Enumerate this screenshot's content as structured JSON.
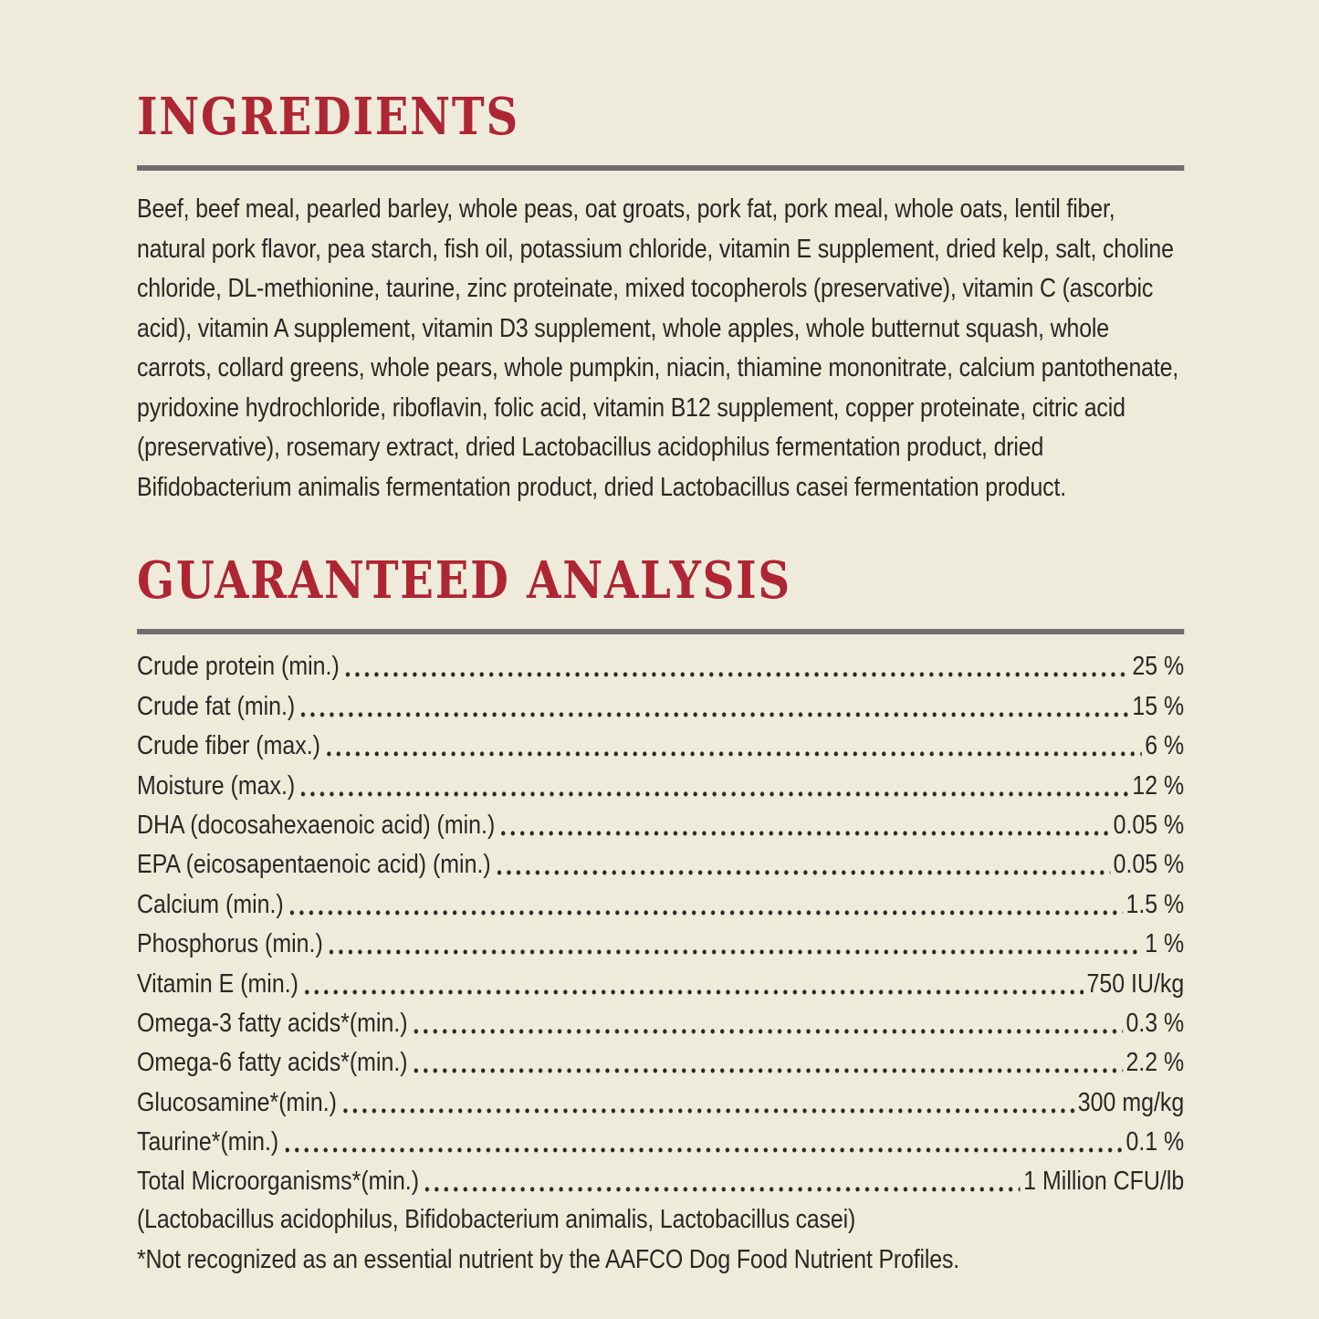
{
  "page": {
    "background_color": "#eeebdb",
    "accent_red": "#ae2533",
    "text_color": "#292824",
    "divider_color": "#6e6e6e"
  },
  "ingredients": {
    "title": "INGREDIENTS",
    "text": "Beef, beef meal, pearled barley, whole peas, oat groats, pork fat, pork meal, whole oats, lentil fiber, natural pork flavor, pea starch, fish oil, potassium chloride, vitamin E supplement, dried kelp, salt, choline chloride, DL-methionine, taurine, zinc proteinate, mixed tocopherols (preservative), vitamin C (ascorbic acid), vitamin A supplement, vitamin D3 supplement, whole apples, whole butternut squash, whole carrots, collard greens, whole pears, whole pumpkin, niacin, thiamine mononitrate, calcium pantothenate, pyridoxine hydrochloride, riboflavin, folic acid, vitamin B12 supplement, copper proteinate, citric acid (preservative), rosemary extract, dried Lactobacillus acidophilus fermentation product, dried Bifidobacterium animalis fermentation product, dried Lactobacillus casei fermentation product."
  },
  "analysis": {
    "title": "GUARANTEED ANALYSIS",
    "rows": [
      {
        "label": "Crude protein (min.)",
        "value": "25 %"
      },
      {
        "label": "Crude fat (min.)",
        "value": "15 %"
      },
      {
        "label": "Crude fiber (max.)",
        "value": "6 %"
      },
      {
        "label": "Moisture (max.)",
        "value": "12 %"
      },
      {
        "label": "DHA (docosahexaenoic acid) (min.)",
        "value": "0.05 %"
      },
      {
        "label": "EPA (eicosapentaenoic acid) (min.)",
        "value": "0.05 %"
      },
      {
        "label": "Calcium (min.)",
        "value": "1.5 %"
      },
      {
        "label": "Phosphorus (min.)",
        "value": "1 %"
      },
      {
        "label": "Vitamin E (min.)",
        "value": "750 IU/kg"
      },
      {
        "label": "Omega-3 fatty acids*(min.)",
        "value": "0.3 %"
      },
      {
        "label": "Omega-6 fatty acids*(min.)",
        "value": "2.2 %"
      },
      {
        "label": "Glucosamine*(min.)",
        "value": "300 mg/kg"
      },
      {
        "label": "Taurine*(min.)",
        "value": "0.1 %"
      },
      {
        "label": "Total Microorganisms*(min.)",
        "value": "1 Million CFU/lb"
      }
    ],
    "microorganisms_note": "(Lactobacillus acidophilus, Bifidobacterium animalis, Lactobacillus casei)",
    "footnote": "*Not recognized as an essential nutrient by the AAFCO Dog Food Nutrient Profiles."
  }
}
